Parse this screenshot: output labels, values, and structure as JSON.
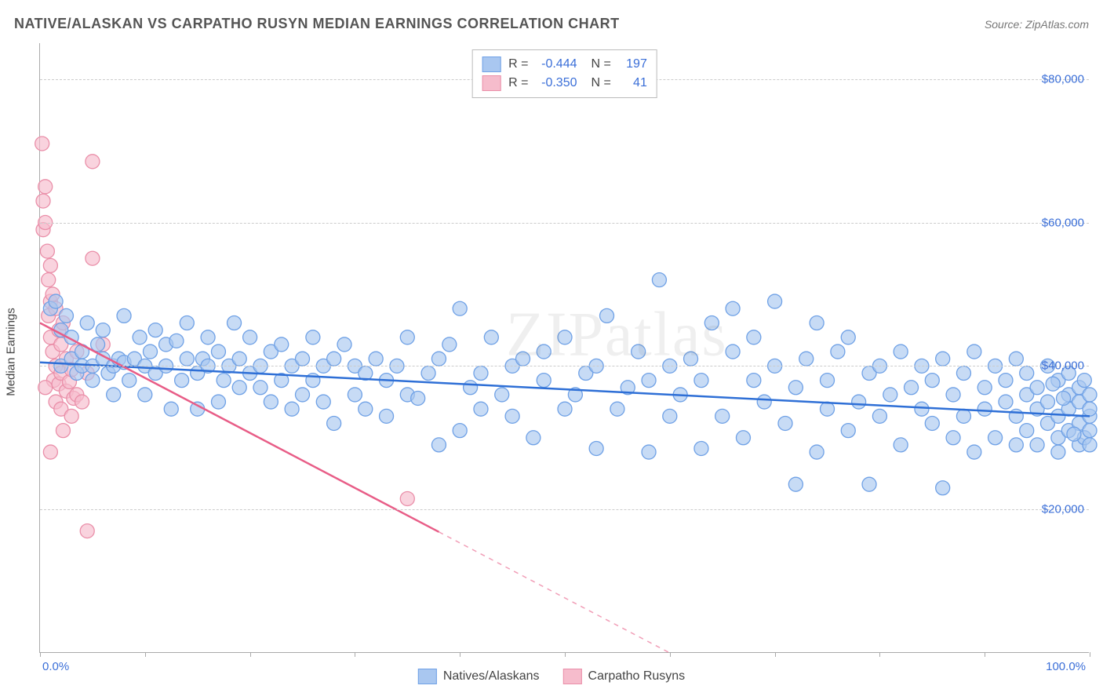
{
  "header": {
    "title": "NATIVE/ALASKAN VS CARPATHO RUSYN MEDIAN EARNINGS CORRELATION CHART",
    "source": "Source: ZipAtlas.com"
  },
  "axes": {
    "y_label": "Median Earnings",
    "x_min_label": "0.0%",
    "x_max_label": "100.0%",
    "x_min": 0,
    "x_max": 100,
    "y_min": 0,
    "y_max": 85000,
    "y_ticks": [
      {
        "v": 20000,
        "lbl": "$20,000"
      },
      {
        "v": 40000,
        "lbl": "$40,000"
      },
      {
        "v": 60000,
        "lbl": "$60,000"
      },
      {
        "v": 80000,
        "lbl": "$80,000"
      }
    ],
    "x_tick_step": 10,
    "grid_color": "#cccccc"
  },
  "series": [
    {
      "key": "natives",
      "label": "Natives/Alaskans",
      "fill": "#a9c7f0",
      "stroke": "#6fa1e6",
      "line_color": "#2e6fd6",
      "r_label": "R =",
      "r_value": "-0.444",
      "n_label": "N =",
      "n_value": "197",
      "trend": {
        "x1": 0,
        "y1": 40500,
        "x2": 100,
        "y2": 33000,
        "solid_to": 100
      },
      "points": [
        [
          1,
          48000
        ],
        [
          1.5,
          49000
        ],
        [
          2,
          45000
        ],
        [
          2,
          40000
        ],
        [
          2.5,
          47000
        ],
        [
          3,
          41000
        ],
        [
          3,
          44000
        ],
        [
          3.5,
          39000
        ],
        [
          4,
          40000
        ],
        [
          4,
          42000
        ],
        [
          4.5,
          46000
        ],
        [
          5,
          38000
        ],
        [
          5,
          40000
        ],
        [
          5.5,
          43000
        ],
        [
          6,
          41000
        ],
        [
          6,
          45000
        ],
        [
          6.5,
          39000
        ],
        [
          7,
          40000
        ],
        [
          7,
          36000
        ],
        [
          7.5,
          41000
        ],
        [
          8,
          47000
        ],
        [
          8,
          40500
        ],
        [
          8.5,
          38000
        ],
        [
          9,
          41000
        ],
        [
          9.5,
          44000
        ],
        [
          10,
          40000
        ],
        [
          10,
          36000
        ],
        [
          10.5,
          42000
        ],
        [
          11,
          39000
        ],
        [
          11,
          45000
        ],
        [
          12,
          40000
        ],
        [
          12,
          43000
        ],
        [
          12.5,
          34000
        ],
        [
          13,
          43500
        ],
        [
          13.5,
          38000
        ],
        [
          14,
          41000
        ],
        [
          14,
          46000
        ],
        [
          15,
          34000
        ],
        [
          15,
          39000
        ],
        [
          15.5,
          41000
        ],
        [
          16,
          44000
        ],
        [
          16,
          40000
        ],
        [
          17,
          35000
        ],
        [
          17,
          42000
        ],
        [
          17.5,
          38000
        ],
        [
          18,
          40000
        ],
        [
          18.5,
          46000
        ],
        [
          19,
          37000
        ],
        [
          19,
          41000
        ],
        [
          20,
          39000
        ],
        [
          20,
          44000
        ],
        [
          21,
          37000
        ],
        [
          21,
          40000
        ],
        [
          22,
          42000
        ],
        [
          22,
          35000
        ],
        [
          23,
          38000
        ],
        [
          23,
          43000
        ],
        [
          24,
          34000
        ],
        [
          24,
          40000
        ],
        [
          25,
          36000
        ],
        [
          25,
          41000
        ],
        [
          26,
          44000
        ],
        [
          26,
          38000
        ],
        [
          27,
          35000
        ],
        [
          27,
          40000
        ],
        [
          28,
          41000
        ],
        [
          28,
          32000
        ],
        [
          29,
          43000
        ],
        [
          30,
          36000
        ],
        [
          30,
          40000
        ],
        [
          31,
          34000
        ],
        [
          31,
          39000
        ],
        [
          32,
          41000
        ],
        [
          33,
          33000
        ],
        [
          33,
          38000
        ],
        [
          34,
          40000
        ],
        [
          35,
          44000
        ],
        [
          35,
          36000
        ],
        [
          36,
          35500
        ],
        [
          37,
          39000
        ],
        [
          38,
          41000
        ],
        [
          38,
          29000
        ],
        [
          39,
          43000
        ],
        [
          40,
          31000
        ],
        [
          40,
          48000
        ],
        [
          41,
          37000
        ],
        [
          42,
          39000
        ],
        [
          42,
          34000
        ],
        [
          43,
          44000
        ],
        [
          44,
          36000
        ],
        [
          45,
          40000
        ],
        [
          45,
          33000
        ],
        [
          46,
          41000
        ],
        [
          47,
          30000
        ],
        [
          48,
          38000
        ],
        [
          48,
          42000
        ],
        [
          50,
          34000
        ],
        [
          50,
          44000
        ],
        [
          51,
          36000
        ],
        [
          52,
          39000
        ],
        [
          53,
          28500
        ],
        [
          53,
          40000
        ],
        [
          54,
          47000
        ],
        [
          55,
          34000
        ],
        [
          56,
          37000
        ],
        [
          57,
          42000
        ],
        [
          58,
          28000
        ],
        [
          58,
          38000
        ],
        [
          59,
          52000
        ],
        [
          60,
          33000
        ],
        [
          60,
          40000
        ],
        [
          61,
          36000
        ],
        [
          62,
          41000
        ],
        [
          63,
          28500
        ],
        [
          63,
          38000
        ],
        [
          64,
          46000
        ],
        [
          65,
          33000
        ],
        [
          66,
          42000
        ],
        [
          66,
          48000
        ],
        [
          67,
          30000
        ],
        [
          68,
          38000
        ],
        [
          68,
          44000
        ],
        [
          69,
          35000
        ],
        [
          70,
          40000
        ],
        [
          70,
          49000
        ],
        [
          71,
          32000
        ],
        [
          72,
          23500
        ],
        [
          72,
          37000
        ],
        [
          73,
          41000
        ],
        [
          74,
          46000
        ],
        [
          74,
          28000
        ],
        [
          75,
          34000
        ],
        [
          75,
          38000
        ],
        [
          76,
          42000
        ],
        [
          77,
          31000
        ],
        [
          77,
          44000
        ],
        [
          78,
          35000
        ],
        [
          79,
          39000
        ],
        [
          79,
          23500
        ],
        [
          80,
          33000
        ],
        [
          80,
          40000
        ],
        [
          81,
          36000
        ],
        [
          82,
          42000
        ],
        [
          82,
          29000
        ],
        [
          83,
          37000
        ],
        [
          84,
          34000
        ],
        [
          84,
          40000
        ],
        [
          85,
          32000
        ],
        [
          85,
          38000
        ],
        [
          86,
          41000
        ],
        [
          86,
          23000
        ],
        [
          87,
          30000
        ],
        [
          87,
          36000
        ],
        [
          88,
          39000
        ],
        [
          88,
          33000
        ],
        [
          89,
          42000
        ],
        [
          89,
          28000
        ],
        [
          90,
          37000
        ],
        [
          90,
          34000
        ],
        [
          91,
          40000
        ],
        [
          91,
          30000
        ],
        [
          92,
          35000
        ],
        [
          92,
          38000
        ],
        [
          93,
          29000
        ],
        [
          93,
          33000
        ],
        [
          93,
          41000
        ],
        [
          94,
          36000
        ],
        [
          94,
          31000
        ],
        [
          94,
          39000
        ],
        [
          95,
          34000
        ],
        [
          95,
          37000
        ],
        [
          95,
          29000
        ],
        [
          96,
          40000
        ],
        [
          96,
          32000
        ],
        [
          96,
          35000
        ],
        [
          97,
          30000
        ],
        [
          97,
          38000
        ],
        [
          97,
          33000
        ],
        [
          97,
          28000
        ],
        [
          98,
          36000
        ],
        [
          98,
          31000
        ],
        [
          98,
          39000
        ],
        [
          98,
          34000
        ],
        [
          99,
          29000
        ],
        [
          99,
          37000
        ],
        [
          99,
          32000
        ],
        [
          99,
          35000
        ],
        [
          99.5,
          30000
        ],
        [
          99.5,
          38000
        ],
        [
          100,
          33000
        ],
        [
          100,
          36000
        ],
        [
          100,
          29000
        ],
        [
          100,
          31000
        ],
        [
          100,
          34000
        ],
        [
          98.5,
          30500
        ],
        [
          97.5,
          35500
        ],
        [
          96.5,
          37500
        ]
      ]
    },
    {
      "key": "carpatho",
      "label": "Carpatho Rusyns",
      "fill": "#f6bccc",
      "stroke": "#ea8fa9",
      "line_color": "#e85d87",
      "r_label": "R =",
      "r_value": "-0.350",
      "n_label": "N =",
      "n_value": "41",
      "trend": {
        "x1": 0,
        "y1": 46000,
        "x2": 60,
        "y2": 0,
        "solid_to": 38
      },
      "points": [
        [
          0.2,
          71000
        ],
        [
          0.3,
          63000
        ],
        [
          0.3,
          59000
        ],
        [
          0.5,
          60000
        ],
        [
          0.5,
          65000
        ],
        [
          0.7,
          56000
        ],
        [
          0.8,
          52000
        ],
        [
          0.8,
          47000
        ],
        [
          1,
          54000
        ],
        [
          1,
          49000
        ],
        [
          1,
          44000
        ],
        [
          1.2,
          42000
        ],
        [
          1.2,
          50000
        ],
        [
          1.3,
          38000
        ],
        [
          1.5,
          48000
        ],
        [
          1.5,
          40000
        ],
        [
          1.5,
          35000
        ],
        [
          1.8,
          45000
        ],
        [
          1.8,
          37500
        ],
        [
          2,
          43000
        ],
        [
          2,
          39000
        ],
        [
          2,
          34000
        ],
        [
          2.2,
          46000
        ],
        [
          2.5,
          36500
        ],
        [
          2.5,
          41000
        ],
        [
          2.8,
          37800
        ],
        [
          3,
          39500
        ],
        [
          3,
          33000
        ],
        [
          3.2,
          35500
        ],
        [
          3.5,
          36000
        ],
        [
          3.5,
          42000
        ],
        [
          4,
          35000
        ],
        [
          4.5,
          39000
        ],
        [
          5,
          68500
        ],
        [
          5,
          55000
        ],
        [
          6,
          43000
        ],
        [
          1,
          28000
        ],
        [
          4.5,
          17000
        ],
        [
          35,
          21500
        ],
        [
          0.5,
          37000
        ],
        [
          2.2,
          31000
        ]
      ]
    }
  ],
  "watermark": {
    "part1": "ZIP",
    "part2": "atlas"
  },
  "colors": {
    "tick_label": "#3b6fd8",
    "axis": "#aaaaaa",
    "text": "#555555"
  },
  "marker_radius": 9
}
